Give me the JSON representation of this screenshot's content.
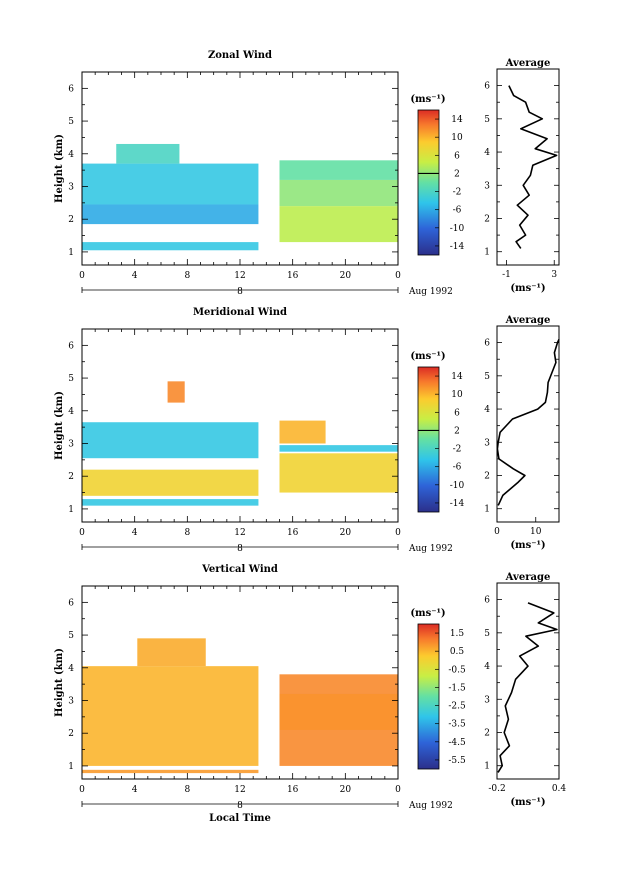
{
  "chart_data": [
    {
      "type": "heatmap",
      "title": "Zonal Wind",
      "ylabel": "Height (km)",
      "yticks": [
        "1",
        "2",
        "3",
        "4",
        "5",
        "6"
      ],
      "ylim": [
        0.6,
        6.5
      ],
      "xticks": [
        "0",
        "4",
        "8",
        "12",
        "16",
        "20",
        "0"
      ],
      "xlim": [
        0,
        24
      ],
      "date_label": "8",
      "month_label": "Aug 1992",
      "colorbar": {
        "unit": "(ms⁻¹)",
        "ticks": [
          "14",
          "10",
          "6",
          "2",
          "-2",
          "-6",
          "-10",
          "-14"
        ],
        "range": [
          -16,
          16
        ],
        "marker": 2
      },
      "cells": [
        {
          "t0": 0.0,
          "t1": 13.4,
          "h0": 2.45,
          "h1": 3.7,
          "v": -4
        },
        {
          "t0": 0.0,
          "t1": 13.4,
          "h0": 1.85,
          "h1": 2.45,
          "v": -6
        },
        {
          "t0": 0.0,
          "t1": 13.4,
          "h0": 1.05,
          "h1": 1.3,
          "v": -4
        },
        {
          "t0": 2.6,
          "t1": 7.4,
          "h0": 3.7,
          "h1": 4.3,
          "v": -2
        },
        {
          "t0": 15.0,
          "t1": 24.0,
          "h0": 3.2,
          "h1": 3.8,
          "v": 0
        },
        {
          "t0": 15.0,
          "t1": 24.0,
          "h0": 2.4,
          "h1": 3.2,
          "v": 2
        },
        {
          "t0": 15.0,
          "t1": 24.0,
          "h0": 1.3,
          "h1": 2.4,
          "v": 4
        }
      ],
      "profile": {
        "title": "Average",
        "xlabel": "(ms⁻¹)",
        "xticks": [
          "-1",
          "3"
        ],
        "xlim": [
          -1.8,
          3.4
        ],
        "heights": [
          1.1,
          1.3,
          1.5,
          1.8,
          2.1,
          2.4,
          2.7,
          3.0,
          3.3,
          3.6,
          3.9,
          4.1,
          4.4,
          4.7,
          5.0,
          5.2,
          5.5,
          5.7,
          6.0
        ],
        "values": [
          0.2,
          -0.2,
          0.6,
          0.1,
          0.8,
          -0.1,
          0.9,
          0.4,
          1.0,
          1.2,
          3.2,
          1.4,
          2.4,
          0.2,
          2.0,
          0.9,
          0.6,
          -0.4,
          -0.8
        ]
      }
    },
    {
      "type": "heatmap",
      "title": "Meridional Wind",
      "ylabel": "Height (km)",
      "yticks": [
        "1",
        "2",
        "3",
        "4",
        "5",
        "6"
      ],
      "ylim": [
        0.6,
        6.5
      ],
      "xticks": [
        "0",
        "4",
        "8",
        "12",
        "16",
        "20",
        "0"
      ],
      "xlim": [
        0,
        24
      ],
      "date_label": "8",
      "month_label": "Aug 1992",
      "colorbar": {
        "unit": "(ms⁻¹)",
        "ticks": [
          "14",
          "10",
          "6",
          "2",
          "-2",
          "-6",
          "-10",
          "-14"
        ],
        "range": [
          -16,
          16
        ],
        "marker": 2
      },
      "cells": [
        {
          "t0": 0.0,
          "t1": 13.4,
          "h0": 2.55,
          "h1": 3.65,
          "v": -4
        },
        {
          "t0": 0.0,
          "t1": 13.4,
          "h0": 1.4,
          "h1": 2.2,
          "v": 8
        },
        {
          "t0": 0.0,
          "t1": 13.4,
          "h0": 1.1,
          "h1": 1.3,
          "v": -4
        },
        {
          "t0": 6.5,
          "t1": 7.8,
          "h0": 4.25,
          "h1": 4.9,
          "v": 12
        },
        {
          "t0": 15.0,
          "t1": 24.0,
          "h0": 1.5,
          "h1": 2.7,
          "v": 8
        },
        {
          "t0": 15.0,
          "t1": 24.0,
          "h0": 2.75,
          "h1": 2.95,
          "v": -4
        },
        {
          "t0": 15.0,
          "t1": 18.5,
          "h0": 3.0,
          "h1": 3.7,
          "v": 10
        }
      ],
      "profile": {
        "title": "Average",
        "xlabel": "(ms⁻¹)",
        "xticks": [
          "0",
          "10"
        ],
        "xlim": [
          0,
          16
        ],
        "heights": [
          1.1,
          1.4,
          1.8,
          2.0,
          2.2,
          2.5,
          2.8,
          3.0,
          3.3,
          3.7,
          4.0,
          4.2,
          4.5,
          4.8,
          5.1,
          5.4,
          5.7,
          6.0,
          6.1
        ],
        "values": [
          0.3,
          1.5,
          5.5,
          7.2,
          4.2,
          0.5,
          0.1,
          0.3,
          0.8,
          4.0,
          10.5,
          12.5,
          13.0,
          13.2,
          14.2,
          15.2,
          14.8,
          15.6,
          16.0
        ]
      }
    },
    {
      "type": "heatmap",
      "title": "Vertical Wind",
      "ylabel": "Height (km)",
      "xlabel": "Local Time",
      "yticks": [
        "1",
        "2",
        "3",
        "4",
        "5",
        "6"
      ],
      "ylim": [
        0.6,
        6.5
      ],
      "xticks": [
        "0",
        "4",
        "8",
        "12",
        "16",
        "20",
        "0"
      ],
      "xlim": [
        0,
        24
      ],
      "date_label": "8",
      "month_label": "Aug 1992",
      "colorbar": {
        "unit": "(ms⁻¹)",
        "ticks": [
          "1.5",
          "0.5",
          "-0.5",
          "-1.5",
          "-2.5",
          "-3.5",
          "-4.5",
          "-5.5"
        ],
        "range": [
          -6,
          2
        ],
        "marker": null
      },
      "cells": [
        {
          "t0": 0.0,
          "t1": 13.4,
          "h0": 1.0,
          "h1": 4.05,
          "v": 0.5
        },
        {
          "t0": 4.2,
          "t1": 9.4,
          "h0": 4.05,
          "h1": 4.9,
          "v": 0.6
        },
        {
          "t0": 0.0,
          "t1": 13.4,
          "h0": 0.78,
          "h1": 0.88,
          "v": 0.8
        },
        {
          "t0": 15.0,
          "t1": 24.0,
          "h0": 1.0,
          "h1": 3.8,
          "v": 1.0
        },
        {
          "t0": 15.0,
          "t1": 24.0,
          "h0": 2.1,
          "h1": 3.2,
          "v": 0.9
        }
      ],
      "profile": {
        "title": "Average",
        "xlabel": "(ms⁻¹)",
        "xticks": [
          "-0.2",
          "0.4"
        ],
        "xlim": [
          -0.2,
          0.4
        ],
        "heights": [
          0.8,
          1.0,
          1.3,
          1.6,
          2.0,
          2.4,
          2.8,
          3.2,
          3.6,
          4.0,
          4.3,
          4.6,
          4.9,
          5.1,
          5.3,
          5.6,
          5.9
        ],
        "values": [
          -0.19,
          -0.15,
          -0.17,
          -0.08,
          -0.13,
          -0.09,
          -0.12,
          -0.06,
          -0.02,
          0.1,
          0.02,
          0.2,
          0.08,
          0.38,
          0.2,
          0.35,
          0.1
        ]
      }
    }
  ]
}
